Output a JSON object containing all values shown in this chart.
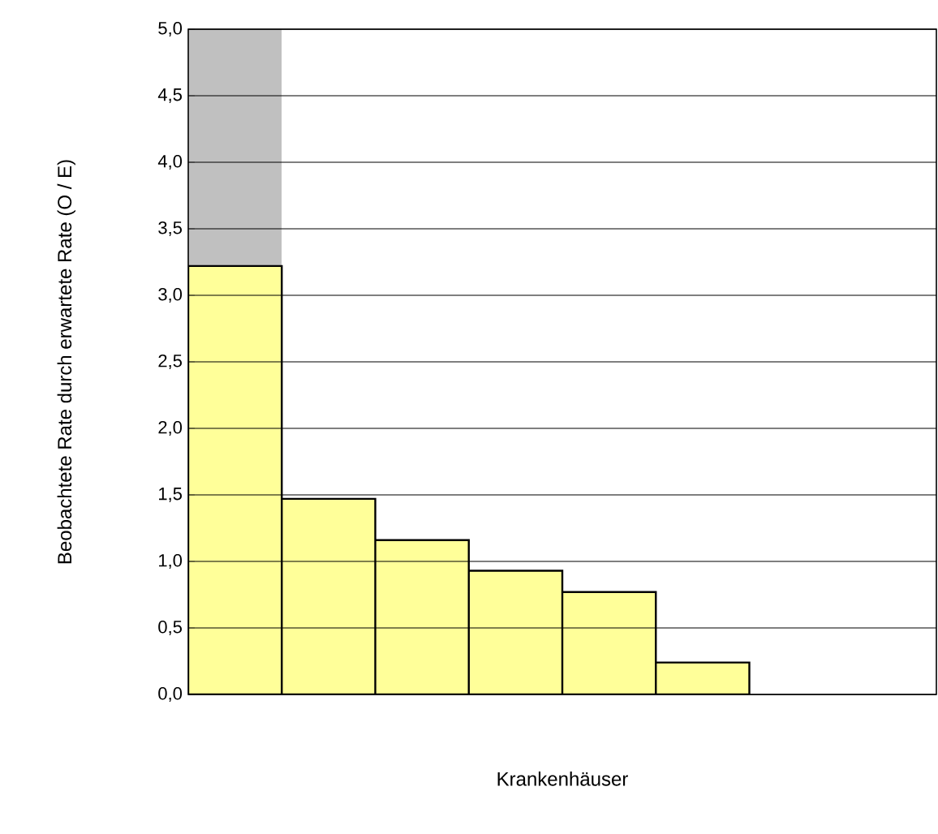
{
  "chart_data": {
    "type": "bar",
    "stacked": true,
    "xlabel": "Krankenhäuser",
    "ylabel": "Beobachtete Rate durch erwartete Rate (O / E)",
    "categories": [
      null,
      null,
      null,
      null,
      null,
      null,
      null,
      null
    ],
    "series": [
      {
        "color": "#ffff99",
        "values": [
          3.22,
          1.47,
          1.16,
          0.93,
          0.77,
          0.24,
          null,
          null
        ]
      },
      {
        "color": "#c0c0c0",
        "values": [
          1.78,
          null,
          null,
          null,
          null,
          null,
          null,
          null
        ]
      }
    ],
    "ylim": [
      0,
      5
    ],
    "yticks": [
      {
        "value": 0,
        "label": "0,0"
      },
      {
        "value": 0.5,
        "label": "0,5"
      },
      {
        "value": 1,
        "label": "1,0"
      },
      {
        "value": 1.5,
        "label": "1,5"
      },
      {
        "value": 2,
        "label": "2,0"
      },
      {
        "value": 2.5,
        "label": "2,5"
      },
      {
        "value": 3,
        "label": "3,0"
      },
      {
        "value": 3.5,
        "label": "3,5"
      },
      {
        "value": 4,
        "label": "4,0"
      },
      {
        "value": 4.5,
        "label": "4,5"
      },
      {
        "value": 5,
        "label": "5,0"
      }
    ],
    "grid": "y"
  }
}
